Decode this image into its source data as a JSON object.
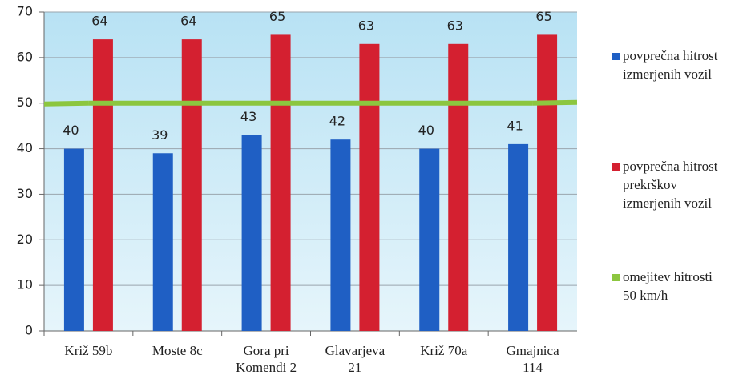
{
  "chart_data": {
    "type": "bar",
    "categories": [
      "Križ 59b",
      "Moste 8c",
      "Gora pri\nKomendi 2",
      "Glavarjeva\n21",
      "Križ 70a",
      "Gmajnica\n114"
    ],
    "series": [
      {
        "name": "povprečna hitrost\nizmerjenih vozil",
        "color": "#1f5fc4",
        "values": [
          40,
          39,
          43,
          42,
          40,
          41
        ]
      },
      {
        "name": "povprečna hitrost\nprekrškov\nizmerjenih vozil",
        "color": "#d42030",
        "values": [
          64,
          64,
          65,
          63,
          63,
          65
        ]
      },
      {
        "name": "omejitev hitrosti\n50 km/h",
        "color": "#8cc63f",
        "type": "line",
        "values": [
          50,
          50,
          50,
          50,
          50,
          50
        ]
      }
    ],
    "ylim": [
      0,
      70
    ],
    "yticks": [
      0,
      10,
      20,
      30,
      40,
      50,
      60,
      70
    ],
    "grid": true,
    "legend": "right"
  }
}
